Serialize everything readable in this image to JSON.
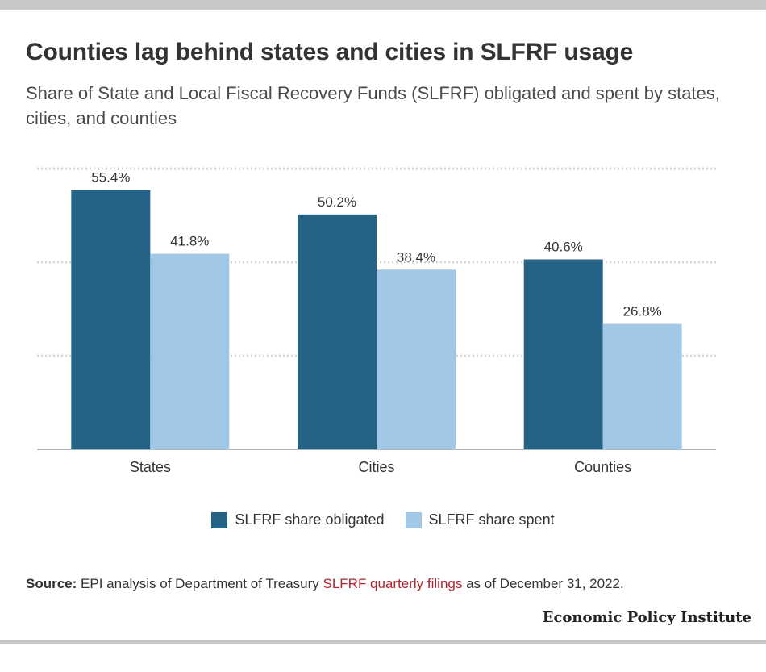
{
  "title": "Counties lag behind states and cities in SLFRF usage",
  "subtitle": "Share of State and Local Fiscal Recovery Funds (SLFRF) obligated and spent by states, cities, and counties",
  "source": {
    "label": "Source:",
    "text_before": " EPI analysis of Department of Treasury ",
    "link_text": "SLFRF quarterly filings",
    "text_after": " as of December 31, 2022."
  },
  "brand": "Economic Policy Institute",
  "colors": {
    "obligated": "#256386",
    "spent": "#a2c8e8"
  },
  "chart_data": {
    "type": "bar",
    "categories": [
      "States",
      "Cities",
      "Counties"
    ],
    "series": [
      {
        "name": "SLFRF share obligated",
        "values": [
          55.4,
          50.2,
          40.6
        ],
        "labels": [
          "55.4%",
          "50.2%",
          "40.6%"
        ]
      },
      {
        "name": "SLFRF share spent",
        "values": [
          41.8,
          38.4,
          26.8
        ],
        "labels": [
          "41.8%",
          "38.4%",
          "26.8%"
        ]
      }
    ],
    "ylim": [
      0,
      60
    ],
    "grid": true,
    "legend": "bottom"
  }
}
